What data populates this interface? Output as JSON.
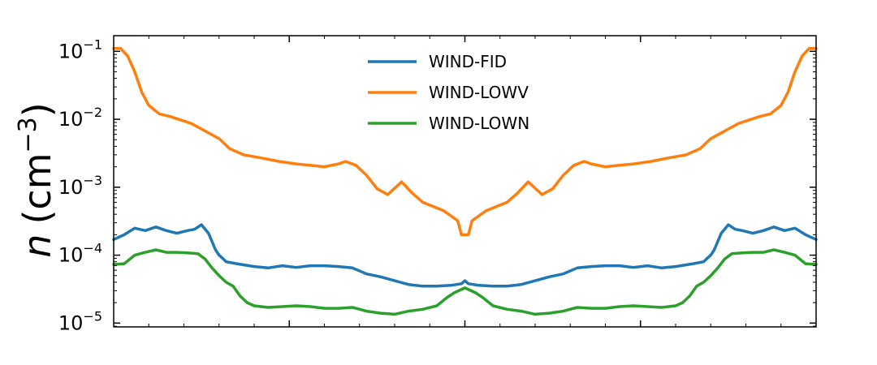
{
  "chart_data": {
    "type": "line",
    "title": "",
    "xlabel": "",
    "ylabel_var": "n",
    "ylabel_unit": "(cm",
    "ylabel_exp": "−3",
    "ylabel_close": ")",
    "yscale": "log",
    "ylim": [
      8.8e-06,
      0.17
    ],
    "xlim": [
      0,
      1
    ],
    "grid": false,
    "legend_position": "top-center",
    "y_ticks": [
      {
        "value": 1e-05,
        "base": "10",
        "exp": "−5"
      },
      {
        "value": 0.0001,
        "base": "10",
        "exp": "−4"
      },
      {
        "value": 0.001,
        "base": "10",
        "exp": "−3"
      },
      {
        "value": 0.01,
        "base": "10",
        "exp": "−2"
      },
      {
        "value": 0.1,
        "base": "10",
        "exp": "−1"
      }
    ],
    "x_ticks": [
      0.25,
      0.5,
      0.75
    ],
    "series": [
      {
        "name": "WIND-FID",
        "color": "#1f77b4",
        "x": [
          0,
          0.015,
          0.03,
          0.045,
          0.06,
          0.075,
          0.09,
          0.105,
          0.115,
          0.125,
          0.135,
          0.145,
          0.15,
          0.155,
          0.16,
          0.175,
          0.2,
          0.22,
          0.24,
          0.26,
          0.28,
          0.3,
          0.32,
          0.34,
          0.36,
          0.38,
          0.4,
          0.42,
          0.44,
          0.46,
          0.48,
          0.495,
          0.5
        ],
        "y": [
          0.00017,
          0.0002,
          0.00025,
          0.00023,
          0.00026,
          0.00023,
          0.00021,
          0.00023,
          0.00024,
          0.00028,
          0.00021,
          0.00012,
          0.0001,
          9e-05,
          8e-05,
          7.5e-05,
          6.8e-05,
          6.5e-05,
          7e-05,
          6.6e-05,
          7e-05,
          7e-05,
          6.8e-05,
          6.5e-05,
          5.3e-05,
          4.8e-05,
          4.2e-05,
          3.7e-05,
          3.5e-05,
          3.5e-05,
          3.6e-05,
          3.8e-05,
          4.2e-05
        ]
      },
      {
        "name": "WIND-LOWV",
        "color": "#ff7f0e",
        "x": [
          0,
          0.01,
          0.02,
          0.03,
          0.04,
          0.05,
          0.065,
          0.08,
          0.095,
          0.11,
          0.125,
          0.135,
          0.15,
          0.165,
          0.185,
          0.21,
          0.235,
          0.26,
          0.28,
          0.3,
          0.32,
          0.33,
          0.345,
          0.36,
          0.375,
          0.39,
          0.41,
          0.425,
          0.44,
          0.455,
          0.47,
          0.48,
          0.49,
          0.495,
          0.5
        ],
        "y": [
          0.11,
          0.11,
          0.085,
          0.05,
          0.025,
          0.016,
          0.012,
          0.011,
          0.0098,
          0.0087,
          0.0072,
          0.0063,
          0.0052,
          0.0037,
          0.003,
          0.0027,
          0.0024,
          0.0022,
          0.0021,
          0.002,
          0.0022,
          0.0024,
          0.0021,
          0.0015,
          0.00095,
          0.00078,
          0.0012,
          0.00082,
          0.0006,
          0.00052,
          0.00045,
          0.00038,
          0.00032,
          0.0002,
          0.0002
        ]
      },
      {
        "name": "WIND-LOWN",
        "color": "#2ca02c",
        "x": [
          0,
          0.015,
          0.03,
          0.045,
          0.06,
          0.075,
          0.09,
          0.105,
          0.12,
          0.13,
          0.14,
          0.15,
          0.16,
          0.17,
          0.18,
          0.19,
          0.2,
          0.22,
          0.24,
          0.26,
          0.28,
          0.3,
          0.32,
          0.34,
          0.36,
          0.38,
          0.4,
          0.42,
          0.44,
          0.46,
          0.475,
          0.485,
          0.5
        ],
        "y": [
          7.3e-05,
          7.5e-05,
          0.0001,
          0.00011,
          0.00012,
          0.00011,
          0.00011,
          0.000108,
          0.000105,
          8.8e-05,
          6.5e-05,
          5e-05,
          4e-05,
          3.5e-05,
          2.5e-05,
          2e-05,
          1.8e-05,
          1.7e-05,
          1.75e-05,
          1.8e-05,
          1.75e-05,
          1.65e-05,
          1.65e-05,
          1.7e-05,
          1.5e-05,
          1.4e-05,
          1.35e-05,
          1.5e-05,
          1.6e-05,
          1.8e-05,
          2.4e-05,
          2.8e-05,
          3.3e-05
        ]
      }
    ]
  }
}
